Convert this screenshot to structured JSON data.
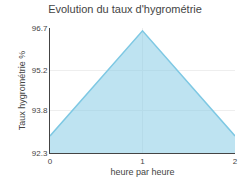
{
  "chart_data": {
    "type": "area",
    "title": "Evolution du taux d'hygrométrie",
    "xlabel": "heure par heure",
    "ylabel": "Taux hygrométrie %",
    "x": [
      0,
      1,
      2
    ],
    "values": [
      92.9,
      96.6,
      92.9
    ],
    "color": "#7ec8e3",
    "xlim": [
      0,
      2
    ],
    "ylim": [
      92.3,
      96.7
    ],
    "xticks": [
      0,
      1,
      2
    ],
    "yticks": [
      92.3,
      93.8,
      95.2,
      96.7
    ],
    "grid": true
  }
}
